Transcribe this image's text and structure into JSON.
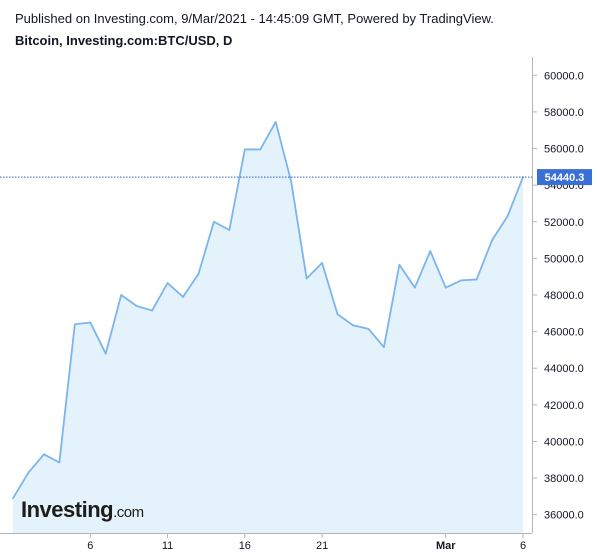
{
  "header": {
    "published": "Published on Investing.com, 9/Mar/2021 - 14:45:09 GMT, Powered by TradingView.",
    "symbol": "Bitcoin, Investing.com:BTC/USD, D"
  },
  "watermark": {
    "brand": "Investing",
    "suffix": ".com"
  },
  "colors": {
    "line": "#7cb5ec",
    "fill": "#e3f2fb",
    "price_tag": "#3a6fd8",
    "price_line": "#2c57b5",
    "axis": "#b2b5be"
  },
  "chart_data": {
    "type": "area",
    "title": "Bitcoin, Investing.com:BTC/USD, D",
    "x_tick_labels": [
      {
        "label": "6",
        "index": 5,
        "bold": false
      },
      {
        "label": "11",
        "index": 10,
        "bold": false
      },
      {
        "label": "16",
        "index": 15,
        "bold": false
      },
      {
        "label": "21",
        "index": 20,
        "bold": false
      },
      {
        "label": "Mar",
        "index": 28,
        "bold": true
      },
      {
        "label": "6",
        "index": 33,
        "bold": false
      }
    ],
    "y_ticks": [
      "36000.0",
      "38000.0",
      "40000.0",
      "42000.0",
      "44000.0",
      "46000.0",
      "48000.0",
      "50000.0",
      "52000.0",
      "54000.0",
      "56000.0",
      "58000.0",
      "60000.0"
    ],
    "ylim": [
      35000,
      61000
    ],
    "last_price_label": "54440.3",
    "last_price": 54440.3,
    "series": [
      {
        "values": [
          36900,
          38300,
          39300,
          38850,
          46400,
          46500,
          44800,
          48000,
          47400,
          47150,
          48650,
          47900,
          49150,
          52000,
          51550,
          55950,
          55950,
          57450,
          54200,
          48900,
          49750,
          46950,
          46350,
          46150,
          45150,
          49650,
          48400,
          50400,
          48400,
          48800,
          48850,
          51000,
          52300,
          54440.3
        ]
      }
    ]
  }
}
